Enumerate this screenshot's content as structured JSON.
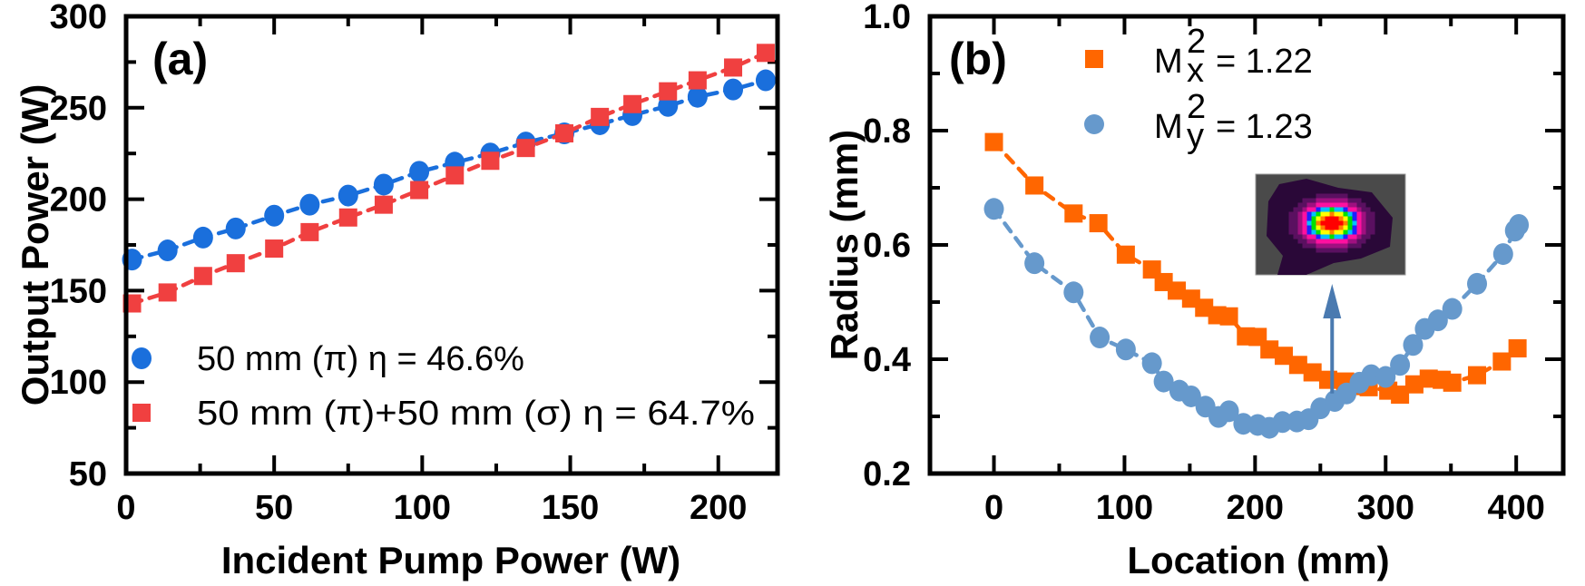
{
  "chart_data": [
    {
      "type": "scatter",
      "panel_label": "(a)",
      "xlabel": "Incident Pump Power (W)",
      "ylabel": "Output Power (W)",
      "xlim": [
        0,
        220
      ],
      "ylim": [
        50,
        300
      ],
      "xticks": [
        0,
        50,
        100,
        150,
        200
      ],
      "yticks": [
        50,
        100,
        150,
        200,
        250,
        300
      ],
      "grid": false,
      "legend_placement": "bottom-left",
      "series": [
        {
          "name": "50 mm (π) η = 46.6%",
          "marker": "circle",
          "color": "#1a6fdc",
          "fit_line": "dashed",
          "x": [
            2,
            14,
            26,
            37,
            50,
            62,
            75,
            87,
            99,
            111,
            123,
            135,
            148,
            160,
            171,
            183,
            193,
            205,
            216
          ],
          "y": [
            167,
            172,
            179,
            184,
            191,
            197,
            202,
            208,
            215,
            220,
            225,
            231,
            236,
            241,
            246,
            251,
            256,
            260,
            265
          ]
        },
        {
          "name": "50 mm (π)+50 mm (σ) η = 64.7%",
          "marker": "square",
          "color": "#f04040",
          "fit_line": "dashed",
          "x": [
            2,
            14,
            26,
            37,
            50,
            62,
            75,
            87,
            99,
            111,
            123,
            135,
            148,
            160,
            171,
            183,
            193,
            205,
            216
          ],
          "y": [
            143,
            149,
            158,
            165,
            173,
            182,
            190,
            197,
            205,
            213,
            221,
            228,
            236,
            245,
            252,
            259,
            265,
            272,
            280
          ]
        }
      ]
    },
    {
      "type": "scatter",
      "panel_label": "(b)",
      "xlabel": "Location (mm)",
      "ylabel": "Radius (mm)",
      "xlim": [
        -49,
        436
      ],
      "ylim": [
        0.2,
        1.0
      ],
      "xticks": [
        0,
        100,
        200,
        300,
        400
      ],
      "yticks": [
        0.2,
        0.4,
        0.6,
        0.8,
        1.0
      ],
      "ytick_labels": [
        "0.2",
        "0.4",
        "0.6",
        "0.8",
        "1.0"
      ],
      "grid": false,
      "legend_placement": "top-center",
      "inset": "beam profile image",
      "series": [
        {
          "legend": {
            "symbol": "M",
            "sub": "x",
            "sup": "2",
            "value": "= 1.22"
          },
          "marker": "square",
          "color": "#ff6600",
          "fit_line": "dashed",
          "x": [
            0,
            31,
            61,
            80,
            101,
            121,
            130,
            140,
            151,
            161,
            171,
            180,
            193,
            202,
            211,
            222,
            233,
            244,
            256,
            269,
            278,
            287,
            302,
            311,
            322,
            333,
            343,
            351,
            370,
            389,
            401
          ],
          "y": [
            0.78,
            0.704,
            0.655,
            0.638,
            0.583,
            0.557,
            0.535,
            0.52,
            0.506,
            0.49,
            0.477,
            0.475,
            0.44,
            0.439,
            0.417,
            0.406,
            0.39,
            0.377,
            0.364,
            0.361,
            0.353,
            0.351,
            0.345,
            0.338,
            0.356,
            0.366,
            0.364,
            0.359,
            0.372,
            0.396,
            0.419
          ]
        },
        {
          "legend": {
            "symbol": "M",
            "sub": "y",
            "sup": "2",
            "value": "= 1.23"
          },
          "marker": "circle",
          "color": "#6699cc",
          "fit_line": "dashed",
          "x": [
            0,
            31,
            61,
            81,
            101,
            121,
            130,
            142,
            151,
            162,
            172,
            180,
            191,
            202,
            211,
            221,
            232,
            241,
            250,
            261,
            270,
            280,
            289,
            300,
            311,
            321,
            330,
            340,
            351,
            370,
            390,
            399,
            402
          ],
          "y": [
            0.663,
            0.568,
            0.517,
            0.438,
            0.417,
            0.393,
            0.361,
            0.345,
            0.335,
            0.317,
            0.299,
            0.309,
            0.287,
            0.285,
            0.28,
            0.29,
            0.291,
            0.295,
            0.314,
            0.327,
            0.34,
            0.359,
            0.372,
            0.369,
            0.39,
            0.425,
            0.453,
            0.468,
            0.488,
            0.532,
            0.584,
            0.625,
            0.635
          ]
        }
      ],
      "arrow": {
        "x": 259,
        "y_from": 0.34,
        "y_to": 0.53,
        "color": "#4a7ab0"
      }
    }
  ]
}
